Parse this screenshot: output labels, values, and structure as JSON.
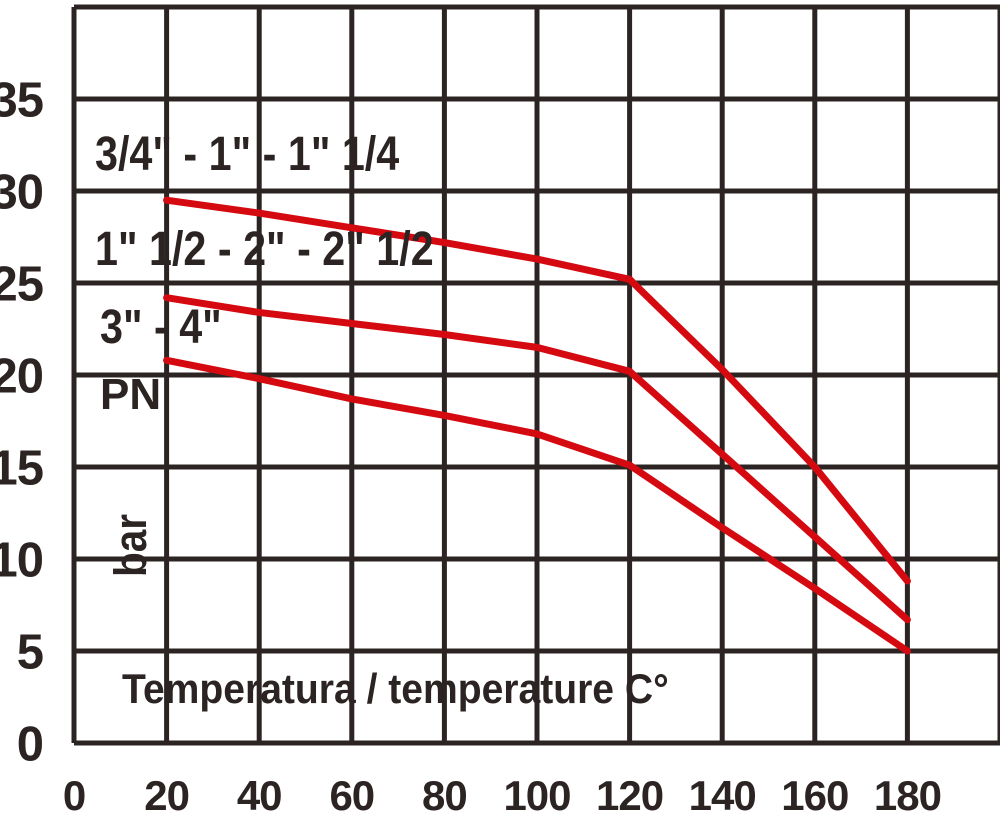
{
  "chart_data": {
    "type": "line",
    "title": "",
    "xlabel": "Temperatura / temperature C°",
    "ylabel_top": "PN",
    "ylabel_unit": "bar",
    "xlim": [
      0,
      200
    ],
    "ylim": [
      0,
      40
    ],
    "grid": true,
    "x_ticks": [
      0,
      20,
      40,
      60,
      80,
      100,
      120,
      140,
      160,
      180
    ],
    "y_ticks": [
      0,
      5,
      10,
      15,
      20,
      25,
      30,
      35
    ],
    "x": [
      20,
      40,
      60,
      80,
      100,
      120,
      140,
      160,
      180
    ],
    "series": [
      {
        "name": "3/4\" - 1\" - 1\" 1/4",
        "values": [
          29.5,
          28.8,
          28.0,
          27.2,
          26.3,
          25.2,
          20.3,
          15.0,
          8.8
        ]
      },
      {
        "name": "1\" 1/2 - 2\" - 2\" 1/2",
        "values": [
          24.2,
          23.4,
          22.8,
          22.2,
          21.5,
          20.2,
          15.7,
          11.2,
          6.7
        ]
      },
      {
        "name": "3\" - 4\"",
        "values": [
          20.8,
          19.8,
          18.7,
          17.8,
          16.8,
          15.1,
          11.7,
          8.4,
          5.0
        ]
      }
    ],
    "colors": {
      "line": "#d50a11",
      "grid": "#2b2423",
      "text": "#2b2423",
      "background": "#ffffff"
    },
    "legend_position": "in-plot annotations"
  }
}
